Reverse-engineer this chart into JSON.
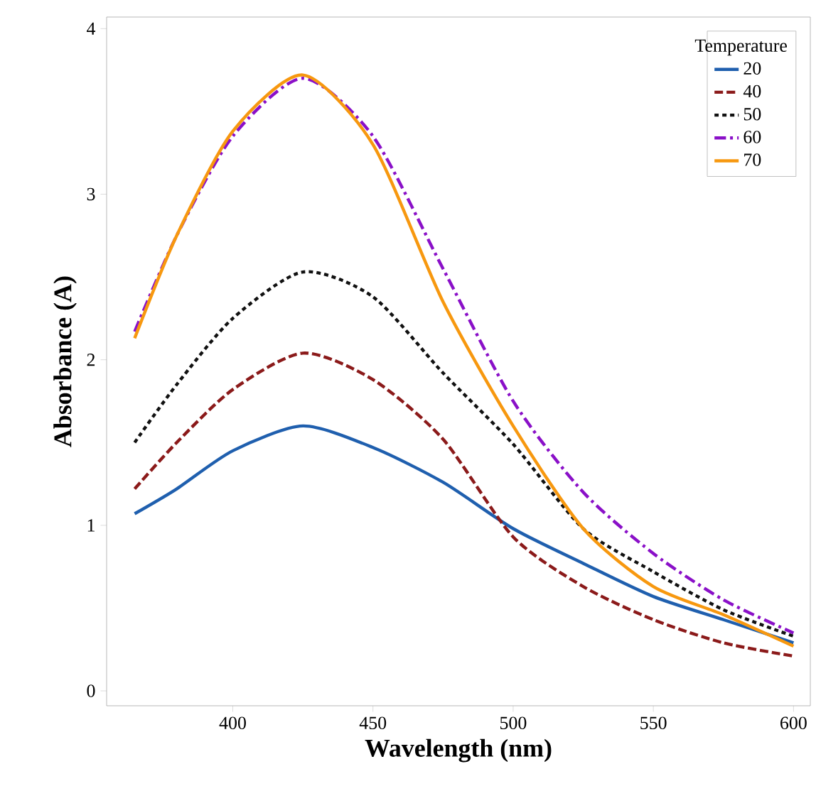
{
  "chart_data": {
    "type": "line",
    "xlabel": "Wavelength (nm)",
    "ylabel": "Absorbance (A)",
    "legend_title": "Temperature",
    "legend": "top right",
    "grid": false,
    "x": [
      365,
      380,
      400,
      425,
      450,
      475,
      500,
      525,
      550,
      575,
      600
    ],
    "xlim": [
      355,
      606
    ],
    "ylim": [
      -0.09,
      4.07
    ],
    "xticks": [
      400,
      450,
      500,
      550,
      600
    ],
    "yticks": [
      0,
      1,
      2,
      3,
      4
    ],
    "series": [
      {
        "name": "20",
        "color": "#1f5fae",
        "line_style": "solid",
        "values": [
          1.07,
          1.22,
          1.45,
          1.6,
          1.47,
          1.26,
          0.98,
          0.77,
          0.57,
          0.43,
          0.29
        ]
      },
      {
        "name": "40",
        "color": "#8b1a1a",
        "line_style": "dashed",
        "values": [
          1.22,
          1.5,
          1.82,
          2.04,
          1.88,
          1.52,
          0.93,
          0.63,
          0.43,
          0.29,
          0.21
        ]
      },
      {
        "name": "50",
        "color": "#111111",
        "line_style": "dotted",
        "values": [
          1.5,
          1.85,
          2.25,
          2.53,
          2.38,
          1.92,
          1.49,
          0.98,
          0.72,
          0.49,
          0.33
        ]
      },
      {
        "name": "60",
        "color": "#8a10c8",
        "line_style": "dashdot",
        "values": [
          2.17,
          2.75,
          3.35,
          3.7,
          3.35,
          2.55,
          1.75,
          1.2,
          0.83,
          0.55,
          0.35
        ]
      },
      {
        "name": "70",
        "color": "#f7980f",
        "line_style": "solid",
        "values": [
          2.13,
          2.75,
          3.38,
          3.72,
          3.3,
          2.35,
          1.6,
          0.98,
          0.63,
          0.46,
          0.27
        ]
      }
    ]
  }
}
